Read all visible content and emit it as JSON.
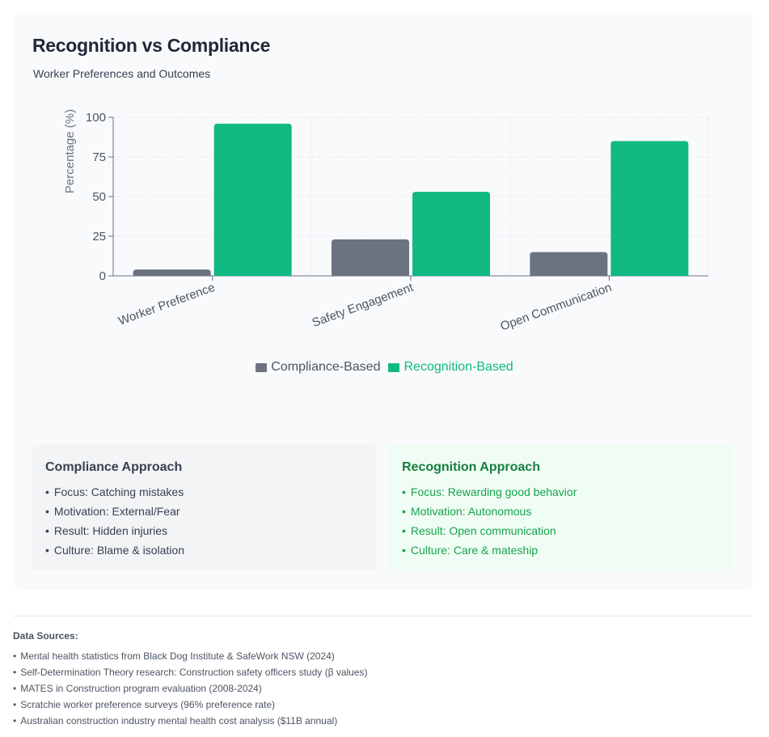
{
  "header": {
    "title": "Recognition vs Compliance",
    "subtitle": "Worker Preferences and Outcomes"
  },
  "chart_data": {
    "type": "bar",
    "categories": [
      "Worker Preference",
      "Safety Engagement",
      "Open Communication"
    ],
    "series": [
      {
        "name": "Compliance-Based",
        "values": [
          4,
          23,
          15
        ],
        "color": "#6b7280"
      },
      {
        "name": "Recognition-Based",
        "values": [
          96,
          53,
          85
        ],
        "color": "#10b981"
      }
    ],
    "ylabel": "Percentage (%)",
    "ylim": [
      0,
      100
    ],
    "yticks": [
      0,
      25,
      50,
      75,
      100
    ],
    "grid": true,
    "legend_position": "bottom"
  },
  "panels": {
    "compliance": {
      "title": "Compliance Approach",
      "items": [
        "Focus: Catching mistakes",
        "Motivation: External/Fear",
        "Result: Hidden injuries",
        "Culture: Blame & isolation"
      ]
    },
    "recognition": {
      "title": "Recognition Approach",
      "items": [
        "Focus: Rewarding good behavior",
        "Motivation: Autonomous",
        "Result: Open communication",
        "Culture: Care & mateship"
      ]
    }
  },
  "sources": {
    "title": "Data Sources:",
    "items": [
      "Mental health statistics from Black Dog Institute & SafeWork NSW (2024)",
      "Self-Determination Theory research: Construction safety officers study (β values)",
      "MATES in Construction program evaluation (2008-2024)",
      "Scratchie worker preference surveys (96% preference rate)",
      "Australian construction industry mental health cost analysis ($11B annual)"
    ]
  }
}
